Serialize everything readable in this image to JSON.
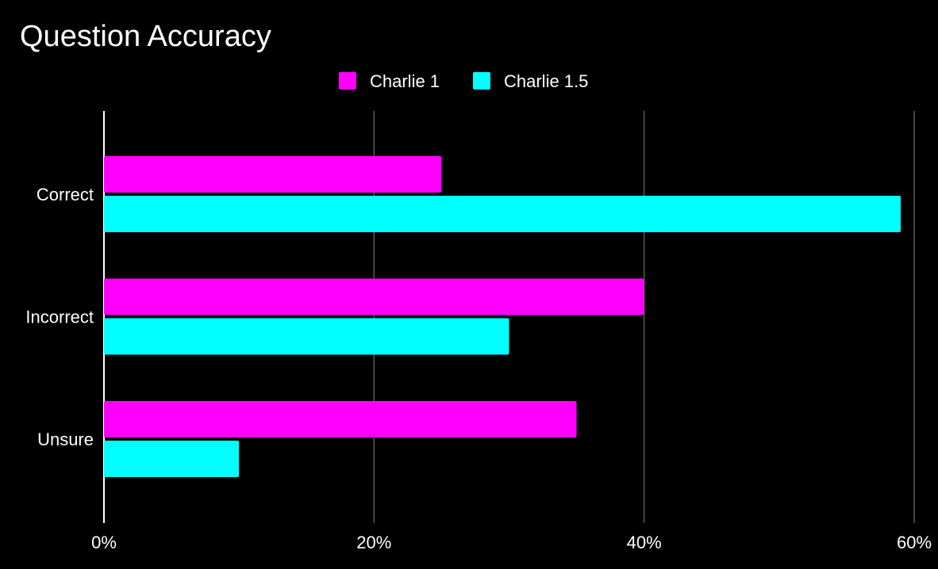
{
  "chart_data": {
    "type": "bar",
    "orientation": "horizontal",
    "title": "Question Accuracy",
    "categories": [
      "Correct",
      "Incorrect",
      "Unsure"
    ],
    "series": [
      {
        "name": "Charlie 1",
        "color": "#ff00ff",
        "values": [
          25,
          40,
          35
        ]
      },
      {
        "name": "Charlie 1.5",
        "color": "#00ffff",
        "values": [
          59,
          30,
          10
        ]
      }
    ],
    "xlim": [
      0,
      60
    ],
    "x_ticks": [
      0,
      20,
      40,
      60
    ],
    "x_tick_labels": [
      "0%",
      "20%",
      "40%",
      "60%"
    ],
    "grid": true,
    "legend_position": "top-center",
    "background_color": "#000000",
    "grid_color": "#5a5a5a",
    "axis_color": "#ffffff"
  }
}
